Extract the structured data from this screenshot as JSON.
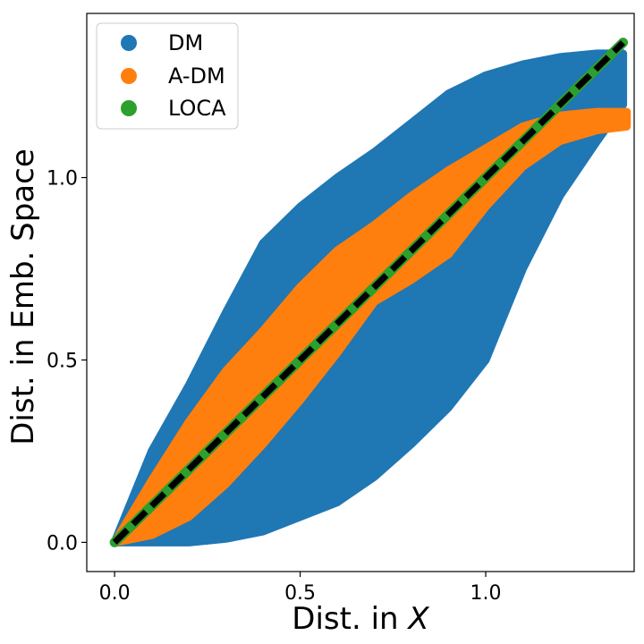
{
  "chart_data": {
    "type": "scatter",
    "title": "",
    "xlabel_prefix": "Dist. in ",
    "xlabel_var": "X",
    "ylabel": "Dist. in Emb. Space",
    "xlim": [
      -0.075,
      1.4
    ],
    "ylim": [
      -0.08,
      1.45
    ],
    "xticks": [
      0.0,
      0.5,
      1.0
    ],
    "xtick_labels": [
      "0.0",
      "0.5",
      "1.0"
    ],
    "yticks": [
      0.0,
      0.5,
      1.0
    ],
    "ytick_labels": [
      "0.0",
      "0.5",
      "1.0"
    ],
    "grid": false,
    "legend_position": "top-left",
    "series": [
      {
        "name": "DM",
        "color": "#1f77b4",
        "kind": "band",
        "x": [
          0.0,
          0.1,
          0.2,
          0.3,
          0.4,
          0.5,
          0.6,
          0.7,
          0.8,
          0.9,
          1.0,
          1.1,
          1.2,
          1.3,
          1.37
        ],
        "y_low": [
          0.0,
          0.0,
          0.0,
          0.01,
          0.03,
          0.07,
          0.11,
          0.18,
          0.27,
          0.37,
          0.5,
          0.75,
          0.95,
          1.1,
          1.2
        ],
        "y_high": [
          0.0,
          0.25,
          0.43,
          0.63,
          0.82,
          0.92,
          1.0,
          1.07,
          1.15,
          1.23,
          1.28,
          1.31,
          1.33,
          1.34,
          1.34
        ]
      },
      {
        "name": "A-DM",
        "color": "#ff7f0e",
        "kind": "band",
        "x": [
          0.0,
          0.1,
          0.2,
          0.3,
          0.4,
          0.5,
          0.6,
          0.7,
          0.8,
          0.9,
          1.0,
          1.1,
          1.2,
          1.3,
          1.38
        ],
        "y_low": [
          0.0,
          0.02,
          0.07,
          0.16,
          0.27,
          0.39,
          0.52,
          0.66,
          0.72,
          0.79,
          0.92,
          1.03,
          1.1,
          1.13,
          1.14
        ],
        "y_high": [
          0.0,
          0.17,
          0.33,
          0.47,
          0.58,
          0.7,
          0.8,
          0.87,
          0.95,
          1.02,
          1.08,
          1.14,
          1.17,
          1.18,
          1.18
        ]
      },
      {
        "name": "LOCA",
        "color": "#2ca02c",
        "kind": "line",
        "x": [
          0.0,
          1.37
        ],
        "y": [
          0.0,
          1.37
        ]
      }
    ],
    "reference_line": {
      "style": "dashed",
      "color": "#000000",
      "x": [
        0.0,
        1.37
      ],
      "y": [
        0.0,
        1.37
      ]
    }
  }
}
